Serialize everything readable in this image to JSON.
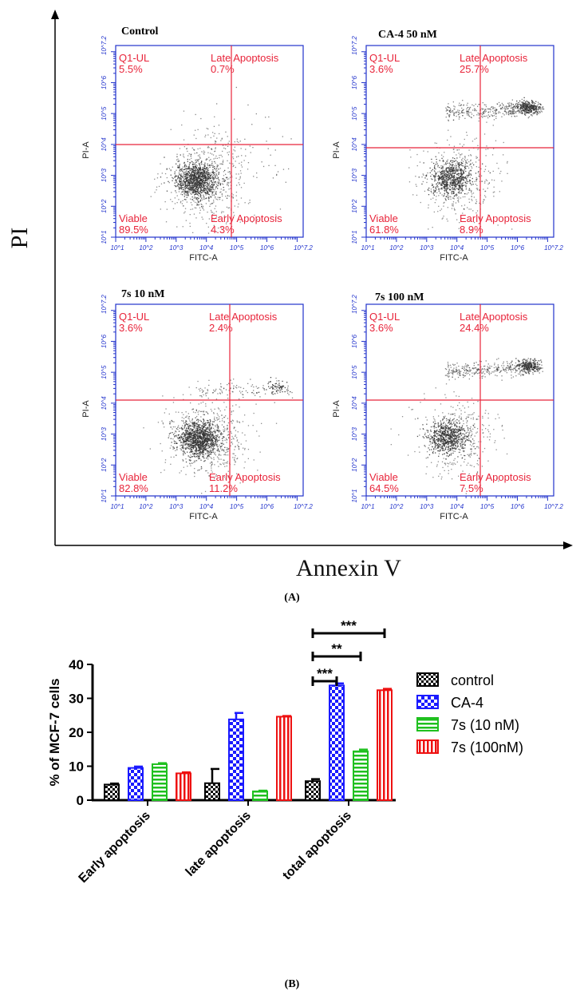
{
  "figure": {
    "panel_a_caption": "(A)",
    "panel_b_caption": "(B)",
    "y_axis_label": "PI",
    "x_axis_label": "Annexin V"
  },
  "flow": {
    "x_axis_title": "FITC-A",
    "y_axis_title": "PI-A",
    "x_ticks": [
      "10^1",
      "10^2",
      "10^3",
      "10^4",
      "10^5",
      "10^6",
      "10^7.2"
    ],
    "y_ticks": [
      "10^1",
      "10^2",
      "10^3",
      "10^4",
      "10^5",
      "10^6",
      "10^7.2"
    ],
    "quadrant_labels": {
      "ul": "Q1-UL",
      "ur": "Late Apoptosis",
      "ll": "Viable",
      "lr": "Early Apoptosis"
    },
    "plots": [
      {
        "title": "Control",
        "ul": "5.5%",
        "ur": "0.7%",
        "ll": "89.5%",
        "lr": "4.3%"
      },
      {
        "title": "CA-4 50 nM",
        "ul": "3.6%",
        "ur": "25.7%",
        "ll": "61.8%",
        "lr": "8.9%"
      },
      {
        "title": "7s 10 nM",
        "ul": "3.6%",
        "ur": "2.4%",
        "ll": "82.8%",
        "lr": "11.2%"
      },
      {
        "title": "7s 100 nM",
        "ul": "3.6%",
        "ur": "24.4%",
        "ll": "64.5%",
        "lr": "7.5%"
      }
    ]
  },
  "chart_data": {
    "type": "bar",
    "title": "",
    "xlabel": "",
    "ylabel": "% of MCF-7 cells",
    "ylim": [
      0,
      40
    ],
    "yticks": [
      "0",
      "10",
      "20",
      "30",
      "40"
    ],
    "categories": [
      "Early apoptosis",
      "late apoptosis",
      "total apoptosis"
    ],
    "series": [
      {
        "name": "control",
        "color": "#000000",
        "pattern": "checker",
        "values": [
          4.6,
          5.0,
          5.6
        ],
        "errors": [
          0.3,
          4.2,
          0.6
        ]
      },
      {
        "name": "CA-4",
        "color": "#1a1aff",
        "pattern": "checker",
        "values": [
          9.5,
          23.8,
          33.8
        ],
        "errors": [
          0.4,
          1.9,
          0.6
        ]
      },
      {
        "name": "7s (10 nM)",
        "color": "#1fc01f",
        "pattern": "hstripe",
        "values": [
          10.6,
          2.6,
          14.4
        ],
        "errors": [
          0.3,
          0.2,
          0.5
        ]
      },
      {
        "name": "7s (100nM)",
        "color": "#ee1111",
        "pattern": "vstripe",
        "values": [
          7.9,
          24.6,
          32.4
        ],
        "errors": [
          0.3,
          0.2,
          0.4
        ]
      }
    ],
    "significance": [
      {
        "label": "***",
        "from": "control",
        "to": "CA-4",
        "category": "total apoptosis"
      },
      {
        "label": "**",
        "from": "control",
        "to": "7s (10 nM)",
        "category": "total apoptosis"
      },
      {
        "label": "***",
        "from": "control",
        "to": "7s (100nM)",
        "category": "total apoptosis"
      }
    ],
    "legend_position": "right"
  }
}
